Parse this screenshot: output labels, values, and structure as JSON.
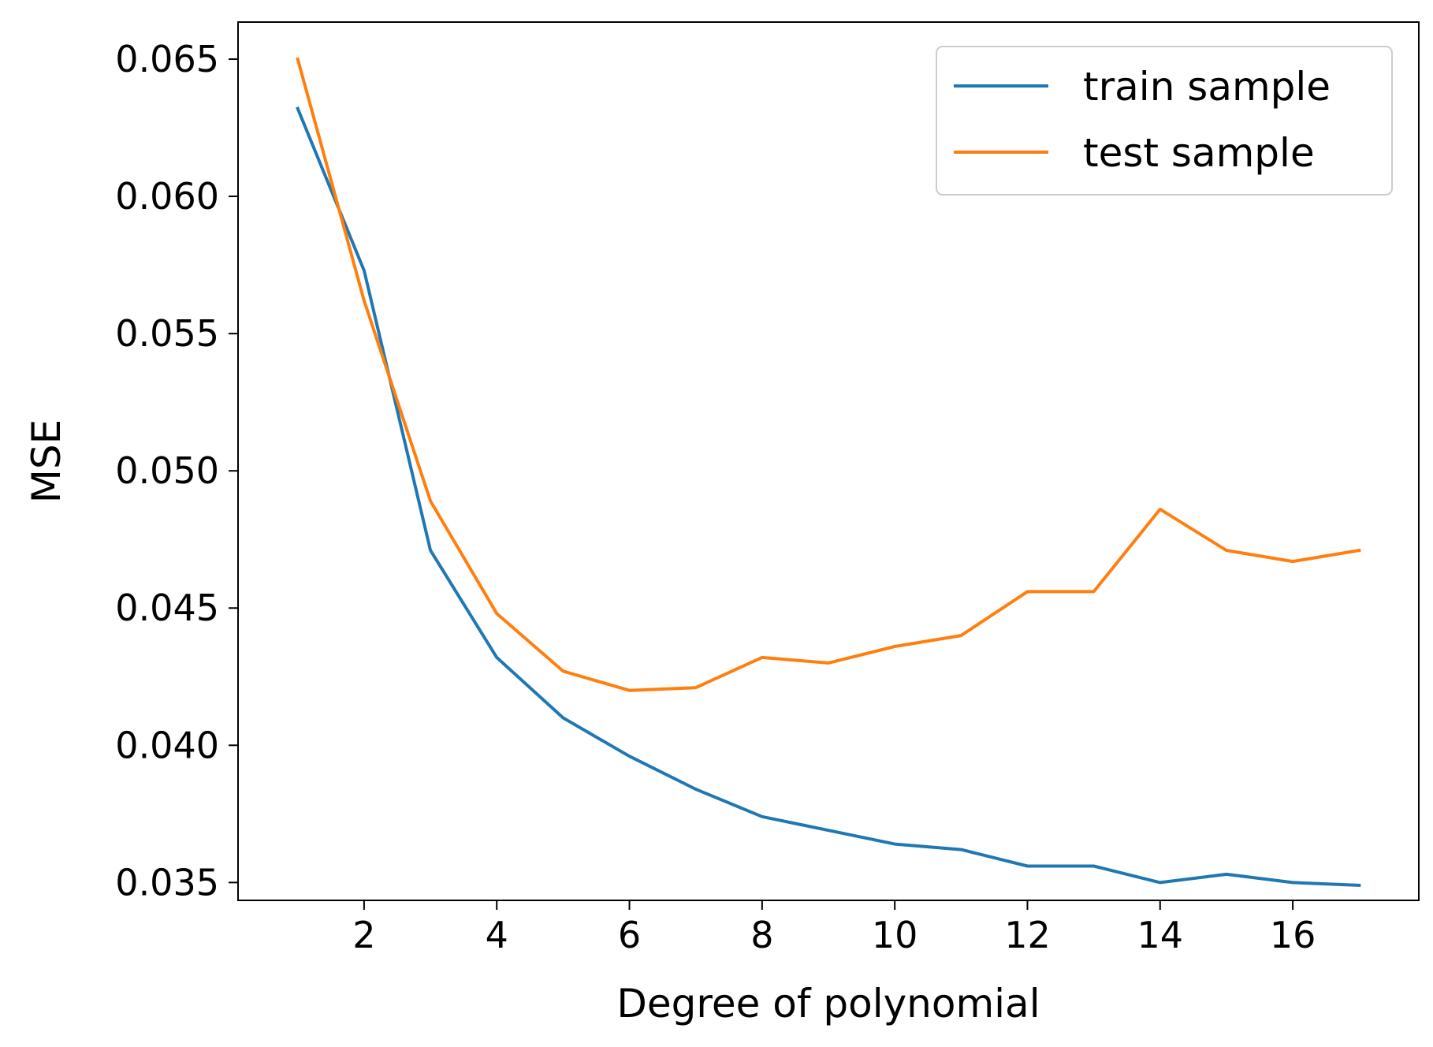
{
  "chart_data": {
    "type": "line",
    "title": "",
    "xlabel": "Degree of polynomial",
    "ylabel": "MSE",
    "x": [
      1,
      2,
      3,
      4,
      5,
      6,
      7,
      8,
      9,
      10,
      11,
      12,
      13,
      14,
      15,
      16,
      17
    ],
    "xlim": [
      0.1,
      17.9
    ],
    "ylim": [
      0.03435,
      0.06635
    ],
    "xticks": [
      2,
      4,
      6,
      8,
      10,
      12,
      14,
      16
    ],
    "xtick_labels": [
      "2",
      "4",
      "6",
      "8",
      "10",
      "12",
      "14",
      "16"
    ],
    "yticks": [
      0.035,
      0.04,
      0.045,
      0.05,
      0.055,
      0.06,
      0.065
    ],
    "ytick_labels": [
      "0.035",
      "0.040",
      "0.045",
      "0.050",
      "0.055",
      "0.060",
      "0.065"
    ],
    "grid": false,
    "legend_position": "top-right",
    "series": [
      {
        "name": "train sample",
        "color": "#1f77b4",
        "values": [
          0.0632,
          0.0573,
          0.0471,
          0.0432,
          0.041,
          0.0396,
          0.0384,
          0.0374,
          0.0369,
          0.0364,
          0.0362,
          0.0356,
          0.0356,
          0.035,
          0.0353,
          0.035,
          0.0349
        ]
      },
      {
        "name": "test sample",
        "color": "#ff7f0e",
        "values": [
          0.065,
          0.0562,
          0.0489,
          0.0448,
          0.0427,
          0.042,
          0.0421,
          0.0432,
          0.043,
          0.0436,
          0.044,
          0.0456,
          0.0456,
          0.0486,
          0.0471,
          0.0467,
          0.0471
        ]
      }
    ]
  }
}
